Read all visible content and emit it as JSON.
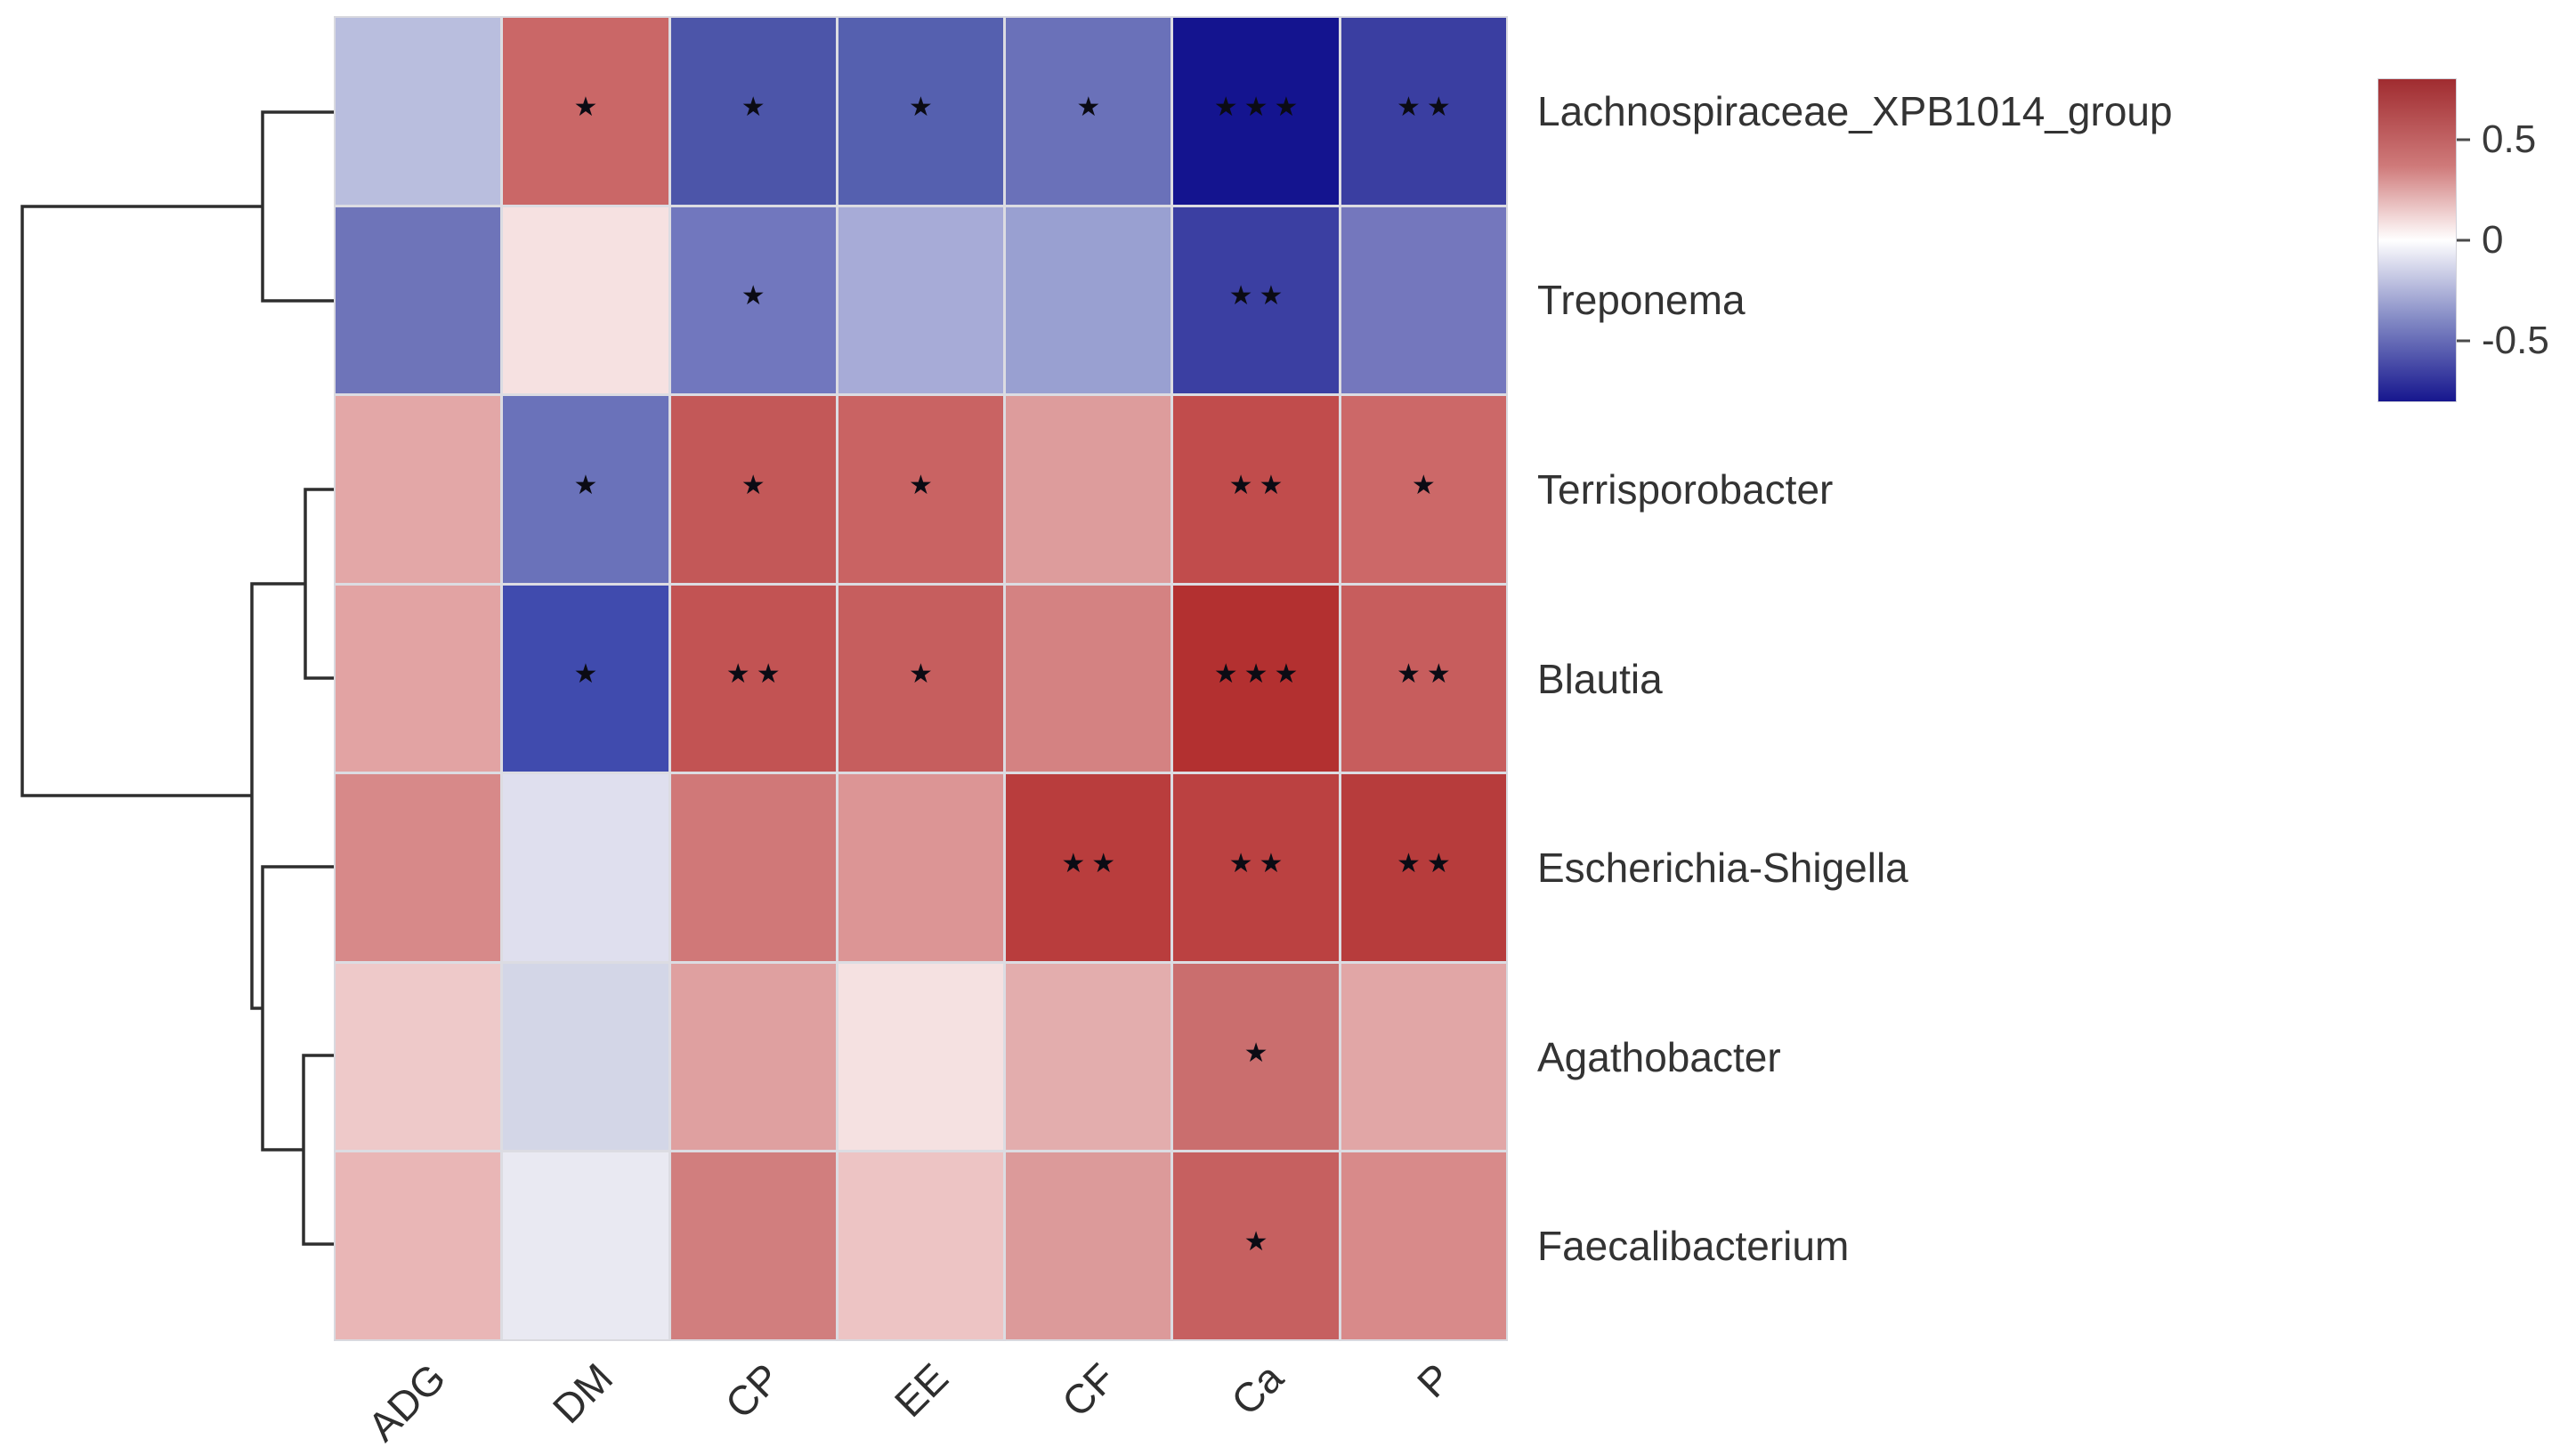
{
  "figure": {
    "background_color": "#ffffff",
    "text_color": "#333333"
  },
  "chart_data": {
    "type": "heatmap",
    "title": "",
    "xlabel": "",
    "ylabel": "",
    "columns": [
      "ADG",
      "DM",
      "CP",
      "EE",
      "CF",
      "Ca",
      "P"
    ],
    "rows": [
      "Lachnospiraceae_XPB1014_group",
      "Treponema",
      "Terrisporobacter",
      "Blautia",
      "Escherichia-Shigella",
      "Agathobacter",
      "Faecalibacterium"
    ],
    "cell_colors": [
      [
        "#b9bede",
        "#ca6767",
        "#4c55a9",
        "#5560af",
        "#6a71b9",
        "#14148f",
        "#3a3ea1"
      ],
      [
        "#6e74b9",
        "#f6e1e1",
        "#7177be",
        "#a7abd7",
        "#99a0d1",
        "#3b3fa2",
        "#7477bd"
      ],
      [
        "#e3a7a7",
        "#6a72ba",
        "#c35858",
        "#c96363",
        "#dd9c9c",
        "#c14c4c",
        "#cc6868"
      ],
      [
        "#e2a3a3",
        "#404bae",
        "#c25353",
        "#c65e5e",
        "#d48282",
        "#b33030",
        "#c75d5d"
      ],
      [
        "#d78989",
        "#dfdfee",
        "#d07878",
        "#dc9595",
        "#b93d3d",
        "#bb4141",
        "#b73c3c"
      ],
      [
        "#eec9c9",
        "#d3d6e7",
        "#dfa0a0",
        "#f5e1e1",
        "#e3adad",
        "#ca6e6e",
        "#e1a6a6"
      ],
      [
        "#e9b6b6",
        "#e9e9f2",
        "#d17e7e",
        "#edc4c4",
        "#dc9a9a",
        "#c66060",
        "#d88a8a"
      ]
    ],
    "significance": [
      [
        "",
        "*",
        "*",
        "*",
        "*",
        "***",
        "**"
      ],
      [
        "",
        "",
        "*",
        "",
        "",
        "**",
        ""
      ],
      [
        "",
        "*",
        "*",
        "*",
        "",
        "**",
        "*"
      ],
      [
        "",
        "*",
        "**",
        "*",
        "",
        "***",
        "**"
      ],
      [
        "",
        "",
        "",
        "",
        "**",
        "**",
        "**"
      ],
      [
        "",
        "",
        "",
        "",
        "",
        "*",
        ""
      ],
      [
        "",
        "",
        "",
        "",
        "",
        "*",
        ""
      ]
    ],
    "values_estimated_from_color": [
      [
        -0.2,
        0.45,
        -0.55,
        -0.52,
        -0.45,
        -0.78,
        -0.63
      ],
      [
        -0.45,
        0.08,
        -0.43,
        -0.28,
        -0.33,
        -0.62,
        -0.42
      ],
      [
        0.28,
        -0.46,
        0.5,
        0.47,
        0.31,
        0.55,
        0.45
      ],
      [
        0.3,
        -0.6,
        0.52,
        0.48,
        0.38,
        0.66,
        0.49
      ],
      [
        0.37,
        -0.08,
        0.41,
        0.33,
        0.61,
        0.59,
        0.61
      ],
      [
        0.16,
        -0.14,
        0.29,
        0.08,
        0.25,
        0.44,
        0.27
      ],
      [
        0.22,
        -0.06,
        0.39,
        0.17,
        0.31,
        0.47,
        0.35
      ]
    ],
    "legend": {
      "tick_labels": [
        "0.5",
        "0",
        "-0.5"
      ],
      "tick_values": [
        0.5,
        0,
        -0.5
      ],
      "colormap": "red-white-blue",
      "color_positive": "#a02c30",
      "color_zero": "#ffffff",
      "color_negative": "#16168e",
      "value_range": [
        -0.8,
        0.8
      ]
    },
    "dendrogram": {
      "axis": "rows",
      "row_order_top_to_bottom": [
        "Lachnospiraceae_XPB1014_group",
        "Treponema",
        "Terrisporobacter",
        "Blautia",
        "Escherichia-Shigella",
        "Agathobacter",
        "Faecalibacterium"
      ],
      "topology": "((Lachnospiraceae_XPB1014_group,Treponema),((Terrisporobacter,Blautia),(Escherichia-Shigella,(Agathobacter,Faecalibacterium))))",
      "line_color": "#2e2e2e"
    },
    "grid_on": true,
    "legend_position": "top-right"
  }
}
